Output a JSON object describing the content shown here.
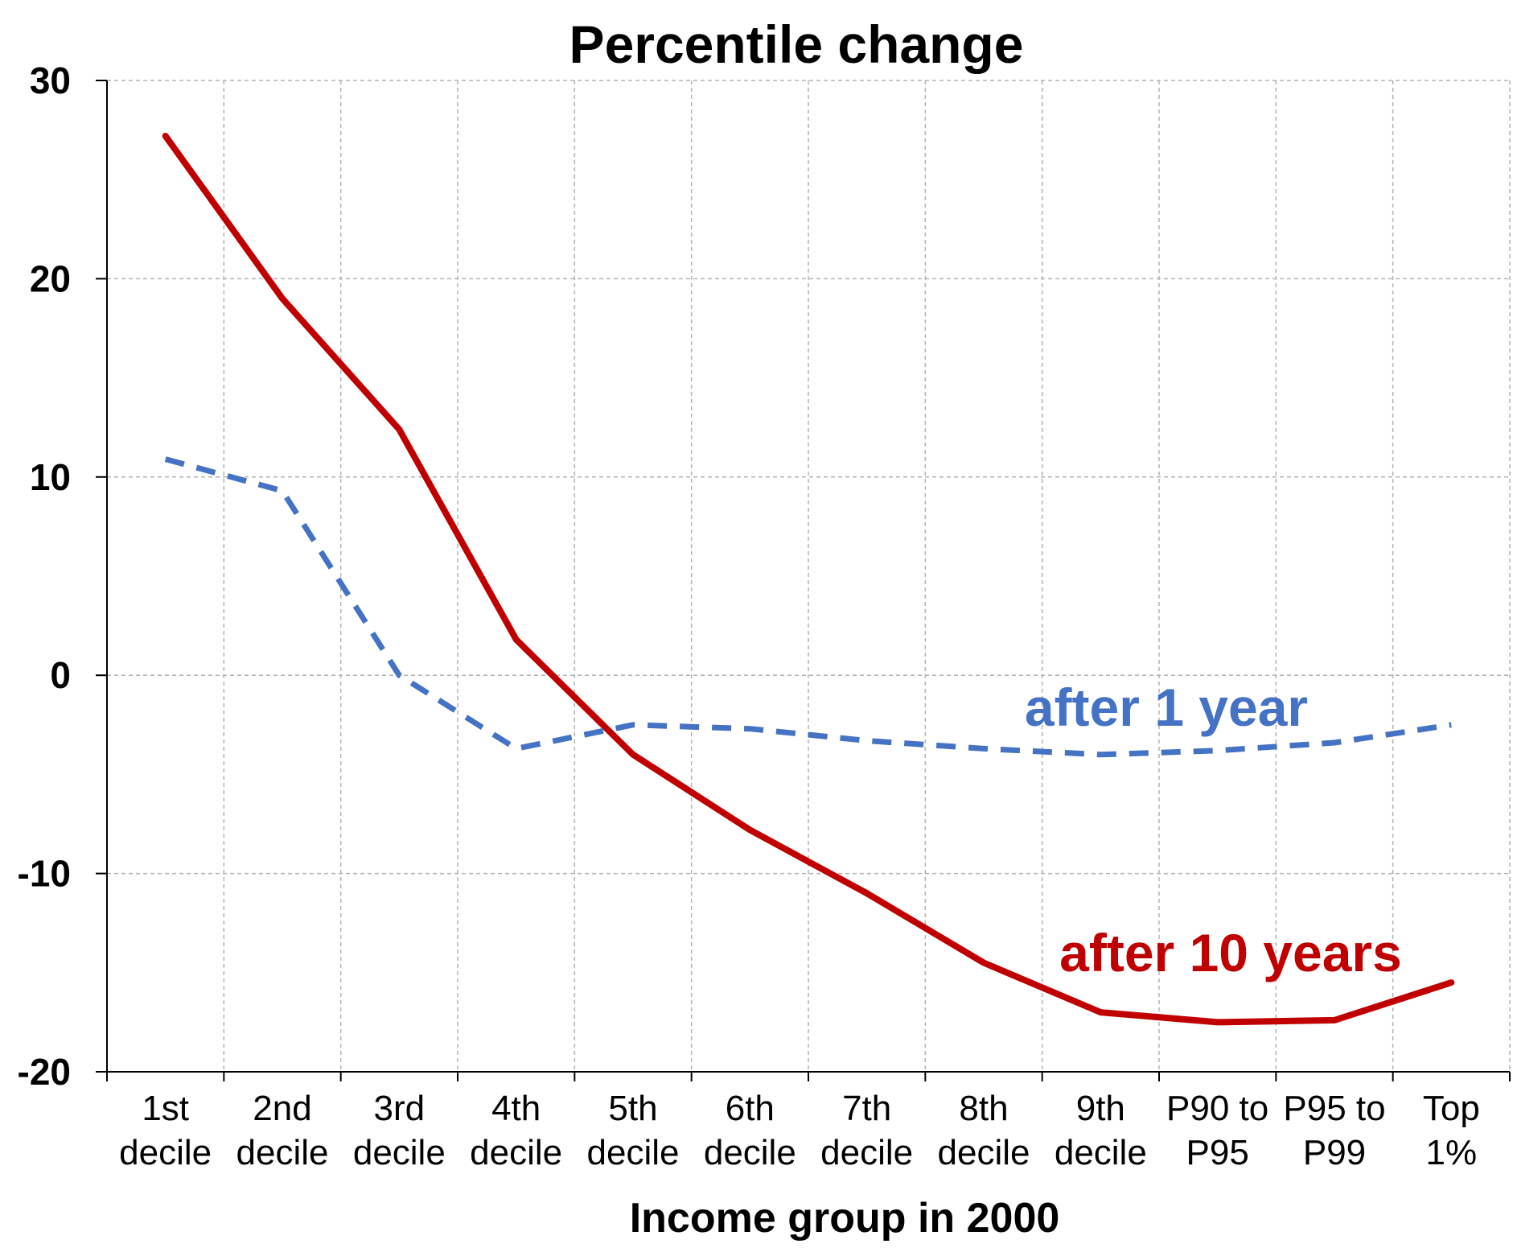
{
  "chart_data": {
    "type": "line",
    "title": "Percentile change",
    "xlabel": "Income group in 2000",
    "ylabel": "",
    "ylim": [
      -20,
      30
    ],
    "yticks": [
      "30",
      "20",
      "10",
      "0",
      "-10",
      "-20"
    ],
    "ytick_values": [
      30,
      20,
      10,
      0,
      -10,
      -20
    ],
    "grid": true,
    "categories": [
      [
        "1st",
        "decile"
      ],
      [
        "2nd",
        "decile"
      ],
      [
        "3rd",
        "decile"
      ],
      [
        "4th",
        "decile"
      ],
      [
        "5th",
        "decile"
      ],
      [
        "6th",
        "decile"
      ],
      [
        "7th",
        "decile"
      ],
      [
        "8th",
        "decile"
      ],
      [
        "9th",
        "decile"
      ],
      [
        "P90 to",
        "P95"
      ],
      [
        "P95 to",
        "P99"
      ],
      [
        "Top",
        "1%"
      ]
    ],
    "series": [
      {
        "name": "after 10 years",
        "color": "#c00000",
        "style": "solid",
        "values": [
          27.2,
          19.0,
          12.4,
          1.8,
          -4.0,
          -7.8,
          -11.0,
          -14.5,
          -17.0,
          -17.5,
          -17.4,
          -15.5
        ]
      },
      {
        "name": "after 1 year",
        "color": "#4472c4",
        "style": "dashed",
        "values": [
          10.9,
          9.3,
          0.0,
          -3.7,
          -2.5,
          -2.7,
          -3.3,
          -3.7,
          -4.0,
          -3.8,
          -3.4,
          -2.5
        ]
      }
    ]
  }
}
